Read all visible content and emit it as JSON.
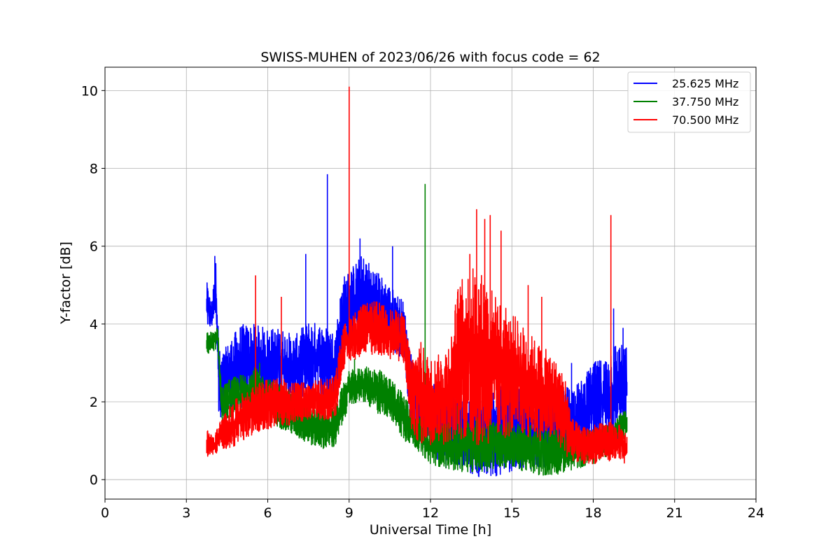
{
  "chart_data": {
    "type": "line",
    "title": "SWISS-MUHEN of 2023/06/26 with focus code = 62",
    "xlabel": "Universal Time [h]",
    "ylabel": "Y-factor [dB]",
    "xlim": [
      0,
      24
    ],
    "ylim": [
      -0.5,
      10.6
    ],
    "xticks": [
      0,
      3,
      6,
      9,
      12,
      15,
      18,
      21,
      24
    ],
    "yticks": [
      0,
      2,
      4,
      6,
      8,
      10
    ],
    "grid": true,
    "legend_position": "top-right",
    "series": [
      {
        "name": "25.625 MHz",
        "color": "#0000ff",
        "x": [
          3.75,
          3.9,
          4.0,
          4.1,
          4.2,
          4.3,
          4.6,
          5.0,
          5.5,
          6.0,
          6.5,
          7.0,
          7.5,
          8.0,
          8.5,
          8.75,
          9.0,
          9.5,
          10.0,
          10.5,
          11.0,
          11.3,
          11.6,
          12.0,
          12.5,
          13.0,
          13.5,
          14.0,
          14.5,
          15.0,
          15.5,
          16.0,
          16.5,
          17.0,
          17.5,
          18.0,
          18.5,
          18.7,
          19.0,
          19.25
        ],
        "low": [
          3.9,
          3.9,
          3.9,
          4.0,
          1.6,
          1.6,
          1.7,
          1.8,
          1.9,
          2.0,
          2.0,
          1.9,
          2.0,
          2.1,
          2.2,
          3.2,
          3.4,
          3.6,
          3.5,
          3.4,
          3.0,
          1.4,
          0.9,
          0.6,
          0.3,
          0.3,
          0.1,
          0.0,
          0.1,
          0.2,
          0.3,
          0.2,
          0.4,
          0.6,
          0.7,
          0.9,
          0.8,
          0.7,
          1.2,
          1.6
        ],
        "high": [
          5.1,
          4.6,
          5.0,
          5.7,
          3.4,
          3.2,
          3.6,
          4.0,
          4.0,
          3.9,
          3.9,
          3.7,
          4.1,
          4.0,
          3.8,
          5.2,
          5.4,
          5.8,
          5.4,
          5.0,
          4.6,
          3.2,
          2.8,
          2.6,
          2.4,
          2.2,
          2.0,
          2.3,
          2.4,
          2.5,
          2.3,
          2.3,
          2.4,
          2.4,
          2.5,
          3.0,
          3.2,
          3.6,
          3.5,
          3.4
        ],
        "peaks": [
          [
            4.05,
            5.75
          ],
          [
            7.4,
            5.8
          ],
          [
            8.2,
            7.85
          ],
          [
            9.4,
            6.2
          ],
          [
            10.6,
            6.0
          ],
          [
            12.8,
            1.9
          ],
          [
            14.6,
            2.4
          ],
          [
            17.2,
            3.0
          ],
          [
            18.75,
            4.4
          ],
          [
            19.1,
            3.9
          ]
        ]
      },
      {
        "name": "37.750 MHz",
        "color": "#008000",
        "x": [
          3.75,
          4.0,
          4.15,
          4.3,
          4.6,
          5.0,
          5.5,
          6.0,
          6.5,
          7.0,
          7.5,
          8.0,
          8.5,
          8.75,
          9.0,
          9.5,
          10.0,
          10.5,
          11.0,
          11.3,
          11.6,
          12.0,
          12.5,
          13.0,
          13.5,
          14.0,
          14.5,
          15.0,
          15.5,
          16.0,
          16.5,
          17.0,
          17.5,
          18.0,
          18.5,
          19.0,
          19.25
        ],
        "low": [
          3.2,
          3.3,
          3.4,
          1.5,
          1.6,
          1.7,
          1.6,
          1.5,
          1.3,
          1.1,
          0.9,
          0.8,
          0.8,
          1.4,
          1.9,
          2.0,
          1.7,
          1.6,
          1.0,
          0.9,
          0.7,
          0.4,
          0.3,
          0.2,
          0.2,
          0.2,
          0.3,
          0.3,
          0.2,
          0.1,
          0.1,
          0.2,
          0.3,
          0.4,
          0.6,
          1.0,
          1.1
        ],
        "high": [
          3.8,
          3.8,
          4.0,
          2.4,
          2.6,
          2.7,
          2.9,
          2.6,
          2.5,
          2.1,
          1.9,
          1.8,
          1.9,
          2.4,
          2.8,
          2.9,
          2.9,
          2.6,
          2.3,
          1.8,
          1.6,
          1.4,
          1.5,
          1.5,
          1.6,
          1.6,
          1.5,
          1.5,
          1.4,
          1.4,
          1.3,
          1.3,
          1.2,
          1.3,
          1.4,
          1.7,
          1.8
        ],
        "peaks": [
          [
            5.7,
            3.0
          ],
          [
            9.2,
            3.1
          ],
          [
            11.8,
            7.6
          ],
          [
            13.0,
            1.9
          ]
        ]
      },
      {
        "name": "70.500 MHz",
        "color": "#ff0000",
        "x": [
          3.75,
          4.0,
          4.3,
          4.6,
          5.0,
          5.5,
          6.0,
          6.5,
          7.0,
          7.5,
          8.0,
          8.5,
          8.75,
          9.0,
          9.5,
          10.0,
          10.5,
          11.0,
          11.3,
          11.6,
          12.0,
          12.5,
          12.8,
          13.0,
          13.5,
          14.0,
          14.5,
          15.0,
          15.5,
          16.0,
          16.5,
          17.0,
          17.2,
          17.5,
          18.0,
          18.5,
          19.0,
          19.25
        ],
        "low": [
          0.6,
          0.6,
          0.8,
          0.8,
          0.9,
          1.2,
          1.3,
          1.4,
          1.4,
          1.5,
          1.5,
          1.6,
          2.8,
          3.0,
          3.2,
          3.2,
          3.1,
          3.0,
          1.2,
          0.9,
          0.9,
          0.9,
          1.0,
          1.1,
          0.9,
          0.8,
          1.0,
          1.1,
          1.1,
          1.0,
          1.0,
          0.6,
          0.5,
          0.4,
          0.4,
          0.5,
          0.4,
          0.4
        ],
        "high": [
          1.3,
          1.1,
          1.6,
          1.9,
          2.2,
          2.4,
          2.6,
          2.6,
          2.5,
          2.5,
          2.6,
          2.7,
          3.9,
          4.2,
          4.5,
          4.6,
          4.4,
          4.3,
          3.2,
          3.6,
          3.1,
          3.3,
          3.9,
          5.0,
          5.5,
          5.3,
          4.6,
          4.3,
          3.9,
          3.5,
          3.2,
          2.6,
          1.6,
          1.4,
          1.4,
          1.5,
          1.4,
          1.2
        ],
        "peaks": [
          [
            5.55,
            5.25
          ],
          [
            6.5,
            4.7
          ],
          [
            9.0,
            10.1
          ],
          [
            13.45,
            5.8
          ],
          [
            13.7,
            6.95
          ],
          [
            14.0,
            6.7
          ],
          [
            14.2,
            6.8
          ],
          [
            14.6,
            6.4
          ],
          [
            15.6,
            5.0
          ],
          [
            16.1,
            4.7
          ],
          [
            18.65,
            6.8
          ]
        ]
      }
    ]
  }
}
